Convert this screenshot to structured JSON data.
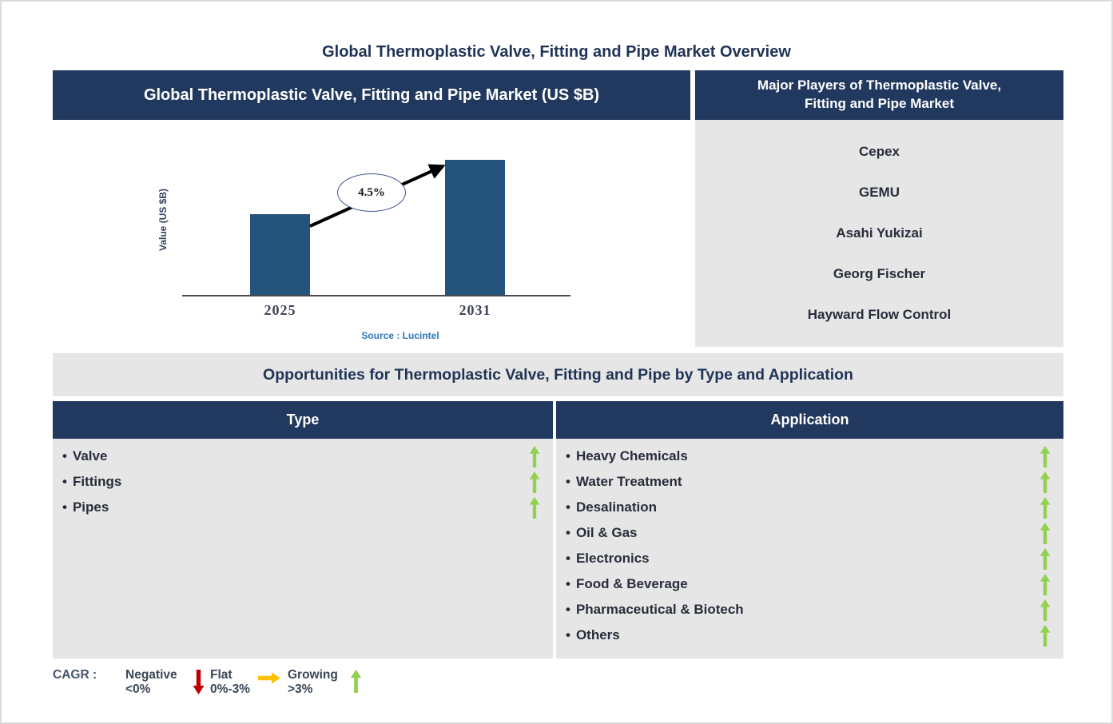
{
  "page_title": "Global Thermoplastic Valve, Fitting and Pipe Market Overview",
  "market_chart": {
    "header": "Global Thermoplastic Valve, Fitting and Pipe Market (US $B)",
    "source": "Source : Lucintel"
  },
  "chart_data": {
    "type": "bar",
    "title": "Global Thermoplastic Valve, Fitting and Pipe Market (US $B)",
    "categories": [
      "2025",
      "2031"
    ],
    "relative_values": [
      0.6,
      1.0
    ],
    "growth_annotation": "4.5%",
    "ylabel": "Value (US $B)",
    "xlabel": "",
    "grid": false,
    "legend_position": "none",
    "source": "Source : Lucintel"
  },
  "players_panel": {
    "header": "Major Players of Thermoplastic Valve, Fitting and Pipe Market",
    "players": [
      "Cepex",
      "GEMU",
      "Asahi Yukizai",
      "Georg Fischer",
      "Hayward Flow Control"
    ]
  },
  "opportunities": {
    "banner": "Opportunities for Thermoplastic Valve, Fitting and Pipe by Type and Application",
    "type_column": {
      "header": "Type",
      "items": [
        {
          "label": "Valve",
          "trend": "growing"
        },
        {
          "label": "Fittings",
          "trend": "growing"
        },
        {
          "label": "Pipes",
          "trend": "growing"
        }
      ]
    },
    "application_column": {
      "header": "Application",
      "items": [
        {
          "label": "Heavy Chemicals",
          "trend": "growing"
        },
        {
          "label": "Water Treatment",
          "trend": "growing"
        },
        {
          "label": "Desalination",
          "trend": "growing"
        },
        {
          "label": "Oil & Gas",
          "trend": "growing"
        },
        {
          "label": "Electronics",
          "trend": "growing"
        },
        {
          "label": "Food & Beverage",
          "trend": "growing"
        },
        {
          "label": "Pharmaceutical & Biotech",
          "trend": "growing"
        },
        {
          "label": "Others",
          "trend": "growing"
        }
      ]
    }
  },
  "cagr_legend": {
    "label": "CAGR :",
    "entries": [
      {
        "name": "Negative",
        "range": "<0%",
        "direction": "down",
        "color": "#C00000"
      },
      {
        "name": "Flat",
        "range": "0%-3%",
        "direction": "right",
        "color": "#FFC000"
      },
      {
        "name": "Growing",
        "range": ">3%",
        "direction": "up",
        "color": "#92D050"
      }
    ]
  },
  "colors": {
    "navy": "#21385F",
    "bar": "#24547C",
    "panel-gray": "#E6E6E6",
    "green": "#92D050",
    "red": "#C00000",
    "orange": "#FFC000",
    "source-blue": "#2E75B6",
    "title-navy": "#1F3456",
    "dark-text": "#272D3A"
  }
}
